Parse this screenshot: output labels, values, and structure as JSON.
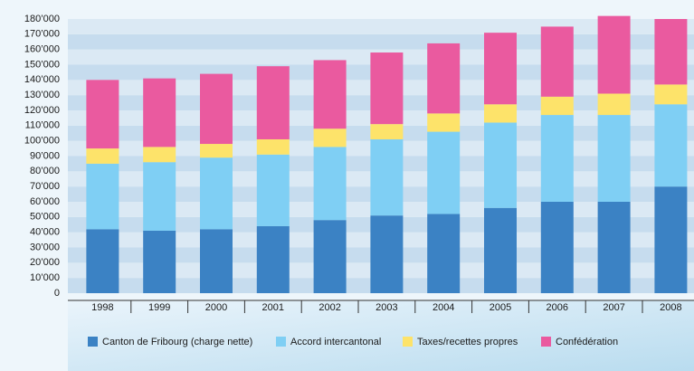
{
  "chart_data": {
    "type": "stacked_bar",
    "categories": [
      "1998",
      "1999",
      "2000",
      "2001",
      "2002",
      "2003",
      "2004",
      "2005",
      "2006",
      "2007",
      "2008"
    ],
    "series": [
      {
        "name": "Canton de Fribourg (charge nette)",
        "color": "#3b82c4",
        "values": [
          42000,
          41000,
          42000,
          44000,
          48000,
          51000,
          52000,
          56000,
          60000,
          60000,
          70000
        ]
      },
      {
        "name": "Accord intercantonal",
        "color": "#7fcff4",
        "values": [
          43000,
          45000,
          47000,
          47000,
          48000,
          50000,
          54000,
          56000,
          57000,
          57000,
          54000
        ]
      },
      {
        "name": "Taxes/recettes propres",
        "color": "#fde36a",
        "values": [
          10000,
          10000,
          9000,
          10000,
          12000,
          10000,
          12000,
          12000,
          12000,
          14000,
          13000
        ]
      },
      {
        "name": "Confédération",
        "color": "#ea5a9f",
        "values": [
          45000,
          45000,
          46000,
          48000,
          45000,
          47000,
          46000,
          47000,
          46000,
          51000,
          43000
        ]
      }
    ],
    "ylim": [
      0,
      180000
    ],
    "yticks": [
      0,
      {
        "value": 10000,
        "label": "10’000"
      },
      {
        "value": 20000,
        "label": "20’000"
      },
      {
        "value": 30000,
        "label": "30’000"
      },
      {
        "value": 40000,
        "label": "40’000"
      },
      {
        "value": 50000,
        "label": "50’000"
      },
      {
        "value": 60000,
        "label": "60’000"
      },
      {
        "value": 70000,
        "label": "70’000"
      },
      {
        "value": 80000,
        "label": "80’000"
      },
      {
        "value": 90000,
        "label": "90’000"
      },
      {
        "value": 100000,
        "label": "100’000"
      },
      {
        "value": 110000,
        "label": "110’000"
      },
      {
        "value": 120000,
        "label": "120’000"
      },
      {
        "value": 130000,
        "label": "130’000"
      },
      {
        "value": 140000,
        "label": "140’000"
      },
      {
        "value": 150000,
        "label": "150’000"
      },
      {
        "value": 160000,
        "label": "160’000"
      },
      {
        "value": 170000,
        "label": "170’000"
      },
      {
        "value": 180000,
        "label": "180’000"
      }
    ],
    "grid": true
  }
}
